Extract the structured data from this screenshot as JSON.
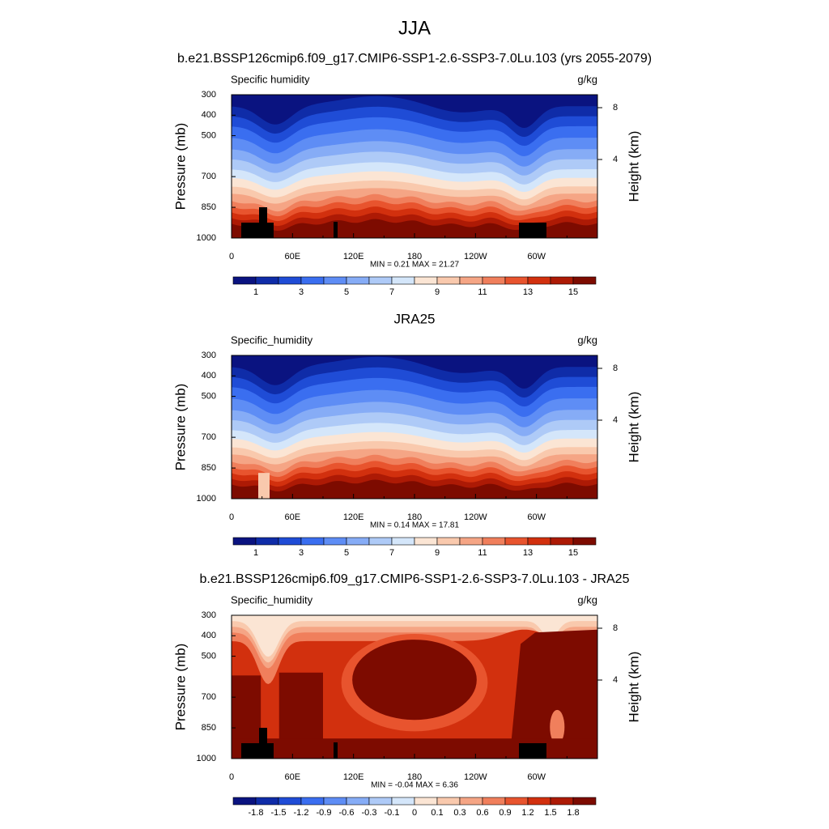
{
  "title": "JJA",
  "panels": [
    {
      "title": "b.e21.BSSP126cmip6.f09_g17.CMIP6-SSP1-2.6-SSP3-7.0Lu.103 (yrs 2055-2079)",
      "left_label": "Specific humidity",
      "right_label": "g/kg",
      "y_axis_title": "Pressure (mb)",
      "y2_axis_title": "Height (km)",
      "pressure_ticks": [
        300,
        400,
        500,
        700,
        850,
        1000
      ],
      "height_ticks": [
        8,
        4
      ],
      "x_ticks": [
        "0",
        "60E",
        "120E",
        "180",
        "120W",
        "60W"
      ],
      "stats": "MIN =  0.21  MAX =  21.27",
      "colorbar": {
        "colors": [
          "#0a1380",
          "#0f2ca8",
          "#1f4cd6",
          "#3a6ef0",
          "#5e8df5",
          "#86acf6",
          "#aecaf7",
          "#d4e6fa",
          "#fbe5d4",
          "#f9c9ad",
          "#f5a585",
          "#f07f5c",
          "#e8542e",
          "#d2300e",
          "#ad1a05",
          "#7d0b00"
        ],
        "labels": [
          1,
          3,
          5,
          7,
          9,
          11,
          13,
          15
        ]
      }
    },
    {
      "title": "JRA25",
      "left_label": "Specific_humidity",
      "right_label": "g/kg",
      "y_axis_title": "Pressure (mb)",
      "y2_axis_title": "Height (km)",
      "pressure_ticks": [
        300,
        400,
        500,
        700,
        850,
        1000
      ],
      "height_ticks": [
        8,
        4
      ],
      "x_ticks": [
        "0",
        "60E",
        "120E",
        "180",
        "120W",
        "60W"
      ],
      "stats": "MIN =  0.14  MAX =  17.81",
      "colorbar": {
        "colors": [
          "#0a1380",
          "#0f2ca8",
          "#1f4cd6",
          "#3a6ef0",
          "#5e8df5",
          "#86acf6",
          "#aecaf7",
          "#d4e6fa",
          "#fbe5d4",
          "#f9c9ad",
          "#f5a585",
          "#f07f5c",
          "#e8542e",
          "#d2300e",
          "#ad1a05",
          "#7d0b00"
        ],
        "labels": [
          1,
          3,
          5,
          7,
          9,
          11,
          13,
          15
        ]
      }
    },
    {
      "title": "b.e21.BSSP126cmip6.f09_g17.CMIP6-SSP1-2.6-SSP3-7.0Lu.103 - JRA25",
      "left_label": "Specific_humidity",
      "right_label": "g/kg",
      "y_axis_title": "Pressure (mb)",
      "y2_axis_title": "Height (km)",
      "pressure_ticks": [
        300,
        400,
        500,
        700,
        850,
        1000
      ],
      "height_ticks": [
        8,
        4
      ],
      "x_ticks": [
        "0",
        "60E",
        "120E",
        "180",
        "120W",
        "60W"
      ],
      "stats": "MIN = -0.04  MAX =  6.36",
      "colorbar": {
        "colors": [
          "#0a1380",
          "#0f2ca8",
          "#1f4cd6",
          "#3a6ef0",
          "#5e8df5",
          "#86acf6",
          "#aecaf7",
          "#d4e6fa",
          "#fbe5d4",
          "#f9c9ad",
          "#f5a585",
          "#f07f5c",
          "#e8542e",
          "#d2300e",
          "#ad1a05",
          "#7d0b00"
        ],
        "labels": [
          -1.8,
          -1.5,
          -1.2,
          -0.9,
          -0.6,
          -0.3,
          -0.1,
          0,
          0.1,
          0.3,
          0.6,
          0.9,
          1.2,
          1.5,
          1.8
        ]
      }
    }
  ]
}
